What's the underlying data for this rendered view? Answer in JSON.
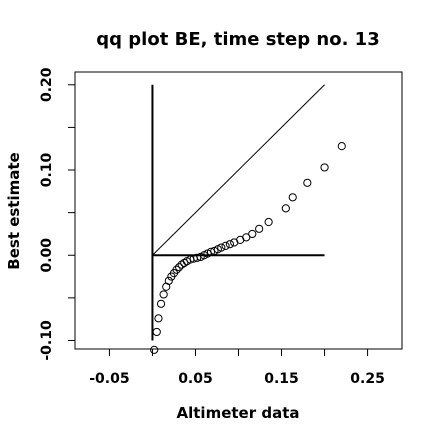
{
  "chart_data": {
    "type": "scatter",
    "title": "qq plot BE, time step no. 13",
    "xlabel": "Altimeter data",
    "ylabel": "Best estimate",
    "xlim": [
      -0.09,
      0.29
    ],
    "ylim": [
      -0.11,
      0.215
    ],
    "x_ticks": [
      -0.05,
      0.05,
      0.15,
      0.25
    ],
    "x_tick_labels": [
      "-0.05",
      "0.05",
      "0.15",
      "0.25"
    ],
    "y_ticks": [
      -0.1,
      0.0,
      0.1,
      0.2
    ],
    "y_tick_labels": [
      "-0.10",
      "0.00",
      "0.10",
      "0.20"
    ],
    "x_minor_ticks": [
      0.0,
      0.1,
      0.2
    ],
    "y_minor_ticks": [
      -0.05,
      0.05,
      0.15
    ],
    "grid": false,
    "marker": "open-circle",
    "reference_lines": [
      {
        "name": "identity",
        "x": [
          0.0,
          0.2
        ],
        "y": [
          0.0,
          0.2
        ]
      },
      {
        "name": "vertical-axis",
        "x": [
          0.0,
          0.0
        ],
        "y": [
          -0.1,
          0.2
        ]
      },
      {
        "name": "horizontal-axis",
        "x": [
          0.0,
          0.2
        ],
        "y": [
          0.0,
          0.0
        ]
      }
    ],
    "points": [
      [
        0.002,
        -0.111
      ],
      [
        0.005,
        -0.09
      ],
      [
        0.007,
        -0.074
      ],
      [
        0.01,
        -0.057
      ],
      [
        0.013,
        -0.046
      ],
      [
        0.016,
        -0.037
      ],
      [
        0.019,
        -0.03
      ],
      [
        0.022,
        -0.025
      ],
      [
        0.025,
        -0.021
      ],
      [
        0.028,
        -0.017
      ],
      [
        0.031,
        -0.014
      ],
      [
        0.034,
        -0.011
      ],
      [
        0.037,
        -0.009
      ],
      [
        0.04,
        -0.007
      ],
      [
        0.044,
        -0.005
      ],
      [
        0.048,
        -0.004
      ],
      [
        0.052,
        -0.003
      ],
      [
        0.056,
        -0.002
      ],
      [
        0.06,
        0.0
      ],
      [
        0.064,
        0.002
      ],
      [
        0.068,
        0.004
      ],
      [
        0.072,
        0.005
      ],
      [
        0.076,
        0.007
      ],
      [
        0.08,
        0.009
      ],
      [
        0.085,
        0.011
      ],
      [
        0.09,
        0.013
      ],
      [
        0.095,
        0.015
      ],
      [
        0.102,
        0.018
      ],
      [
        0.109,
        0.021
      ],
      [
        0.116,
        0.025
      ],
      [
        0.124,
        0.031
      ],
      [
        0.135,
        0.039
      ],
      [
        0.155,
        0.055
      ],
      [
        0.163,
        0.068
      ],
      [
        0.18,
        0.085
      ],
      [
        0.2,
        0.103
      ],
      [
        0.22,
        0.128
      ]
    ]
  }
}
